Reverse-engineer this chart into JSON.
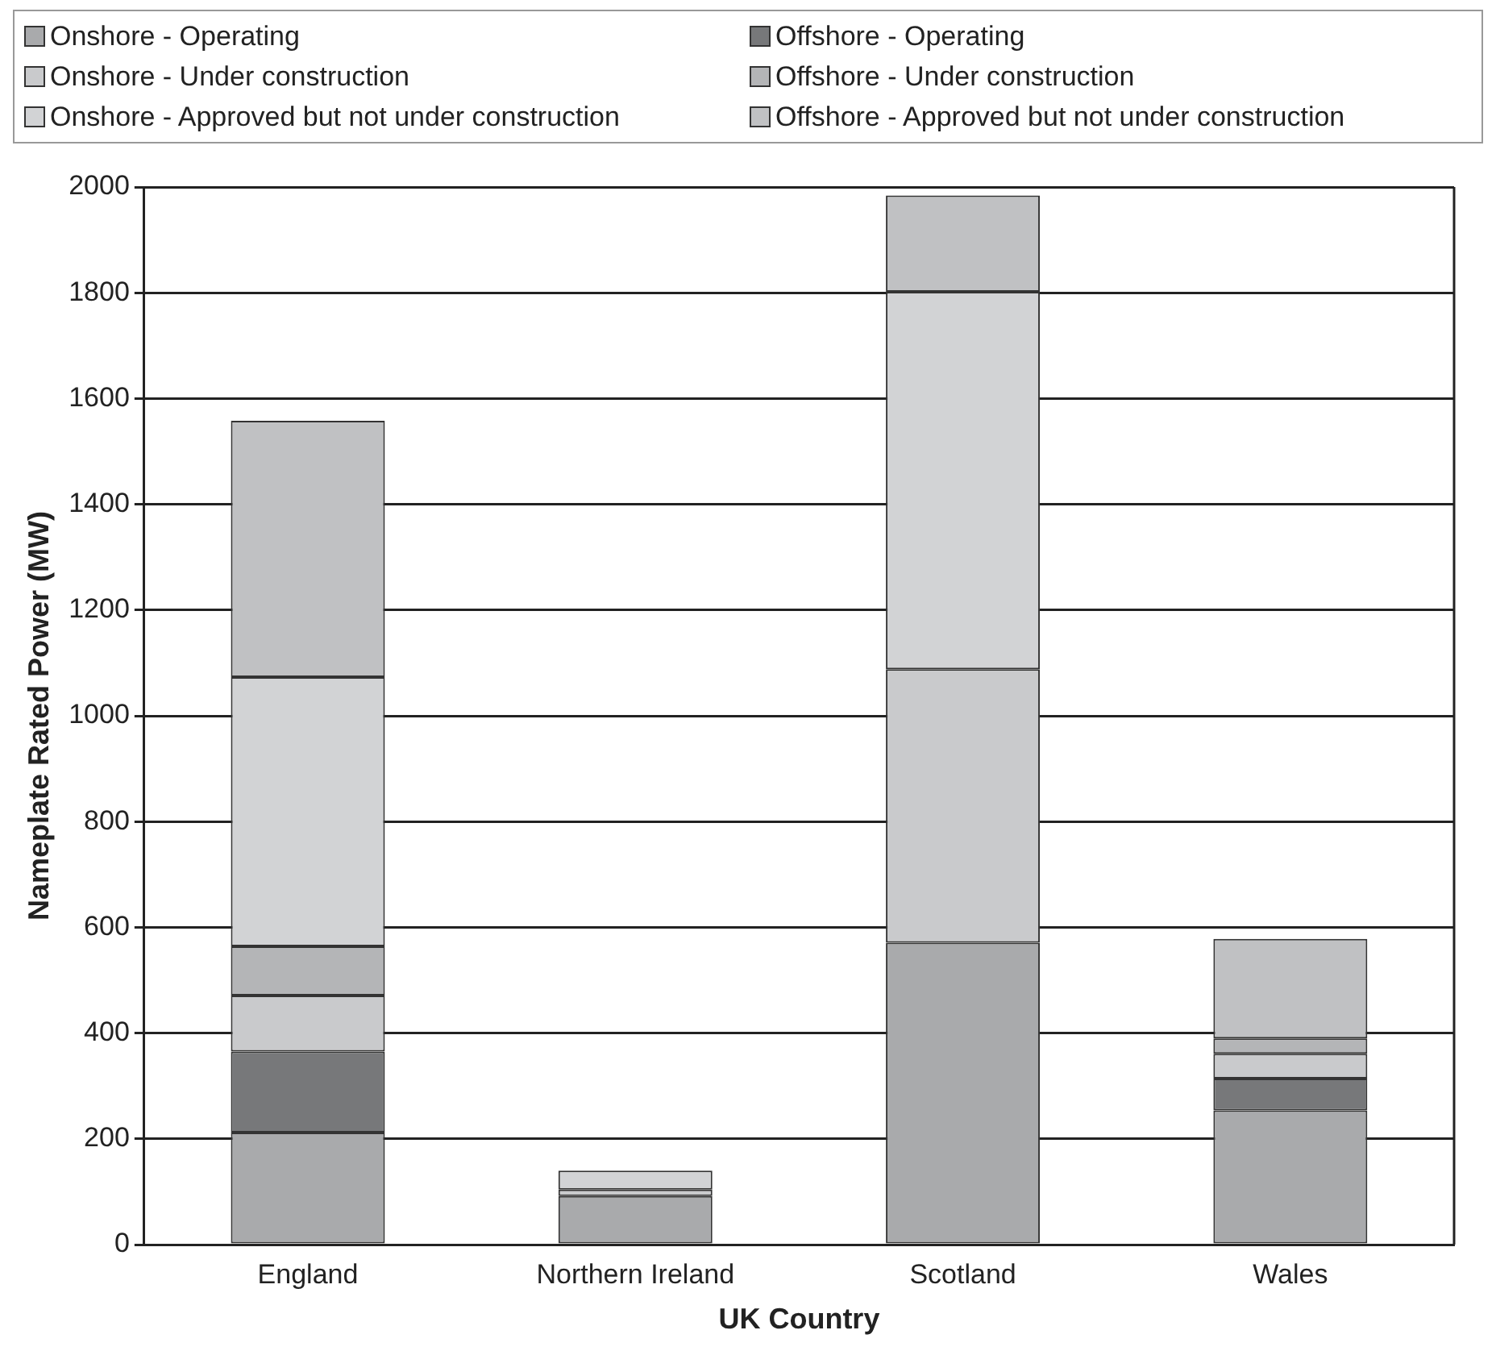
{
  "chart_data": {
    "type": "bar",
    "stacked": true,
    "xlabel": "UK Country",
    "ylabel": "Nameplate Rated Power (MW)",
    "categories": [
      "England",
      "Northern Ireland",
      "Scotland",
      "Wales"
    ],
    "series": [
      {
        "name": "Onshore - Operating",
        "color": "#a9aaac",
        "values": [
          212,
          92,
          571,
          254
        ]
      },
      {
        "name": "Offshore - Operating",
        "color": "#77787a",
        "values": [
          153,
          0,
          0,
          60
        ]
      },
      {
        "name": "Onshore - Under construction",
        "color": "#c9cacc",
        "values": [
          106,
          12,
          517,
          47
        ]
      },
      {
        "name": "Offshore - Under construction",
        "color": "#b4b5b7",
        "values": [
          93,
          0,
          0,
          29
        ]
      },
      {
        "name": "Onshore - Approved but not under construction",
        "color": "#d2d3d5",
        "values": [
          509,
          36,
          714,
          0
        ]
      },
      {
        "name": "Offshore - Approved but not under construction",
        "color": "#c0c1c3",
        "values": [
          485,
          0,
          182,
          188
        ]
      }
    ],
    "ylim": [
      0,
      2000
    ],
    "yticks": [
      0,
      200,
      400,
      600,
      800,
      1000,
      1200,
      1400,
      1600,
      1800,
      2000
    ],
    "grid": "y",
    "legend": "top"
  }
}
